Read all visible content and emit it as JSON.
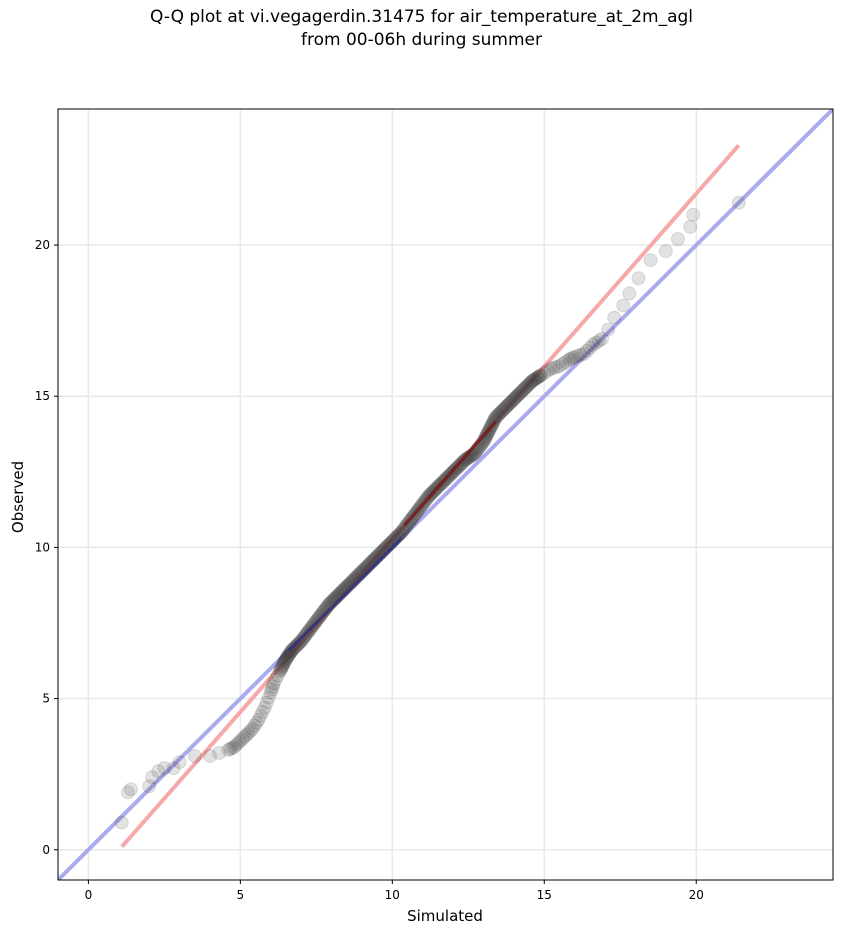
{
  "chart_data": {
    "type": "scatter",
    "title_line1": "Q-Q plot at vi.vegagerdin.31475 for air_temperature_at_2m_agl",
    "title_line2": "from 00-06h during summer",
    "xlabel": "Simulated",
    "ylabel": "Observed",
    "xlim": [
      -1.0,
      24.5
    ],
    "ylim": [
      -1.0,
      24.5
    ],
    "xticks": [
      0,
      5,
      10,
      15,
      20
    ],
    "yticks": [
      0,
      5,
      10,
      15,
      20
    ],
    "grid": true,
    "colors": {
      "points": "#333333",
      "identity_line": "#aaaaee",
      "fit_line": "#f7a8a8",
      "central_identity": "#2a2a88",
      "central_fit": "#880000"
    },
    "series": [
      {
        "type": "quantile_points",
        "points": [
          [
            1.1,
            0.9
          ],
          [
            1.3,
            1.9
          ],
          [
            1.4,
            2.0
          ],
          [
            2.0,
            2.1
          ],
          [
            2.1,
            2.4
          ],
          [
            2.3,
            2.6
          ],
          [
            2.5,
            2.7
          ],
          [
            2.8,
            2.7
          ],
          [
            3.0,
            2.9
          ],
          [
            3.5,
            3.1
          ],
          [
            4.0,
            3.1
          ],
          [
            4.3,
            3.2
          ],
          [
            4.6,
            3.3
          ],
          [
            4.8,
            3.4
          ],
          [
            5.0,
            3.6
          ],
          [
            5.2,
            3.8
          ],
          [
            5.4,
            4.0
          ],
          [
            5.6,
            4.3
          ],
          [
            5.8,
            4.7
          ],
          [
            6.0,
            5.2
          ],
          [
            6.1,
            5.5
          ],
          [
            6.3,
            5.9
          ],
          [
            6.5,
            6.3
          ],
          [
            6.7,
            6.6
          ],
          [
            7.0,
            6.9
          ],
          [
            7.3,
            7.3
          ],
          [
            7.6,
            7.7
          ],
          [
            7.9,
            8.1
          ],
          [
            8.2,
            8.4
          ],
          [
            8.5,
            8.7
          ],
          [
            8.8,
            9.0
          ],
          [
            9.1,
            9.3
          ],
          [
            9.4,
            9.6
          ],
          [
            9.7,
            9.9
          ],
          [
            10.0,
            10.2
          ],
          [
            10.3,
            10.5
          ],
          [
            10.6,
            10.9
          ],
          [
            10.9,
            11.3
          ],
          [
            11.2,
            11.7
          ],
          [
            11.5,
            12.0
          ],
          [
            11.8,
            12.3
          ],
          [
            12.1,
            12.6
          ],
          [
            12.4,
            12.9
          ],
          [
            12.7,
            13.1
          ],
          [
            13.0,
            13.5
          ],
          [
            13.2,
            13.9
          ],
          [
            13.4,
            14.3
          ],
          [
            13.7,
            14.6
          ],
          [
            14.0,
            14.9
          ],
          [
            14.3,
            15.2
          ],
          [
            14.6,
            15.5
          ],
          [
            14.9,
            15.7
          ],
          [
            15.2,
            15.9
          ],
          [
            15.5,
            16.0
          ],
          [
            15.8,
            16.2
          ],
          [
            16.0,
            16.3
          ],
          [
            16.3,
            16.4
          ],
          [
            16.6,
            16.7
          ],
          [
            16.9,
            16.9
          ],
          [
            17.1,
            17.2
          ],
          [
            17.3,
            17.6
          ],
          [
            17.6,
            18.0
          ],
          [
            17.8,
            18.4
          ],
          [
            18.1,
            18.9
          ],
          [
            18.5,
            19.5
          ],
          [
            19.0,
            19.8
          ],
          [
            19.4,
            20.2
          ],
          [
            19.8,
            20.6
          ],
          [
            19.9,
            21.0
          ],
          [
            21.4,
            21.4
          ]
        ]
      },
      {
        "type": "identity_line",
        "from": [
          -1.0,
          -1.0
        ],
        "to": [
          24.5,
          24.5
        ]
      },
      {
        "type": "fit_line",
        "from": [
          1.1,
          0.1
        ],
        "to": [
          21.4,
          23.3
        ]
      }
    ]
  }
}
